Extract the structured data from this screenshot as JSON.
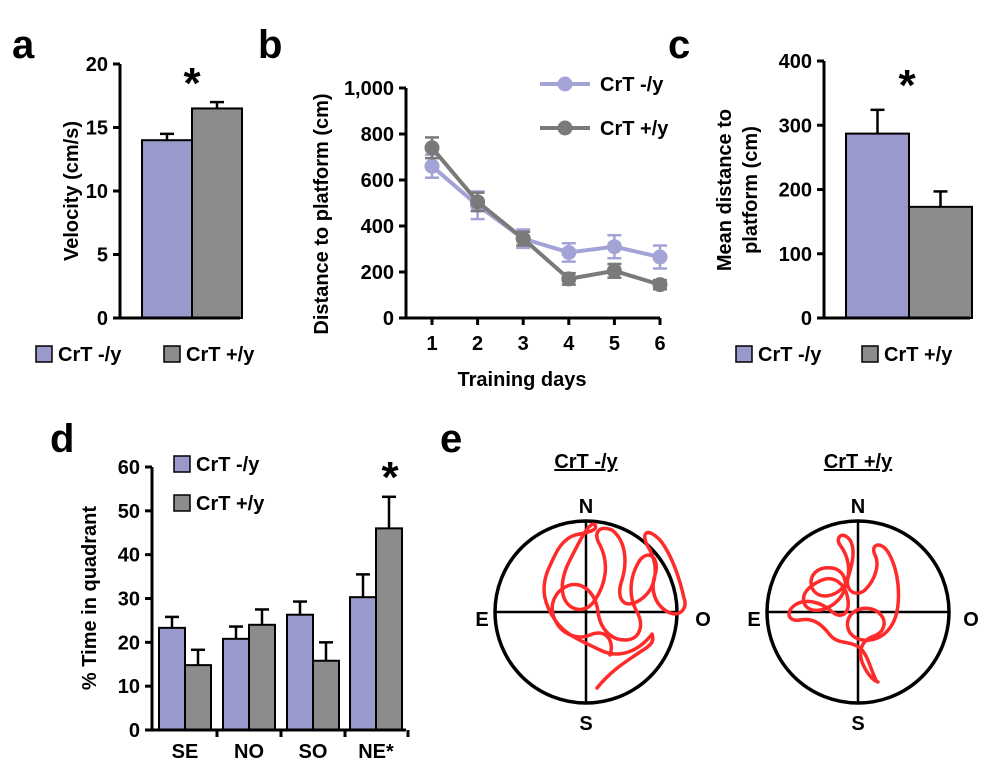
{
  "colors": {
    "ko": "#9999cc",
    "wt": "#8c8c8c",
    "ko_line": "#a3a3d6",
    "wt_line": "#7a7a7a",
    "track": "#ff2a2a",
    "axis": "#000000"
  },
  "legend_labels": {
    "ko": "CrT -/y",
    "wt": "CrT +/y"
  },
  "chart_data": [
    {
      "panel": "a",
      "type": "bar",
      "ylabel": "Velocity (cm/s)",
      "categories": [
        "CrT -/y",
        "CrT +/y"
      ],
      "values": [
        14.0,
        16.5
      ],
      "errors": [
        0.5,
        0.5
      ],
      "ylim": [
        0,
        20
      ],
      "yticks": [
        "0",
        "5",
        "10",
        "15",
        "20"
      ],
      "annotation": "*"
    },
    {
      "panel": "b",
      "type": "line",
      "xlabel": "Training days",
      "ylabel": "Distance to platform (cm)",
      "x": [
        "1",
        "2",
        "3",
        "4",
        "5",
        "6"
      ],
      "ylim": [
        0,
        1000
      ],
      "yticks": [
        "0",
        "200",
        "400",
        "600",
        "800",
        "1,000"
      ],
      "series": [
        {
          "name": "CrT -/y",
          "values": [
            660,
            490,
            345,
            285,
            310,
            265
          ],
          "errors": [
            50,
            60,
            40,
            40,
            50,
            50
          ]
        },
        {
          "name": "CrT +/y",
          "values": [
            740,
            505,
            345,
            170,
            205,
            145
          ],
          "errors": [
            45,
            40,
            30,
            25,
            30,
            20
          ]
        }
      ]
    },
    {
      "panel": "c",
      "type": "bar",
      "ylabel": "Mean distance to platform (cm)",
      "ylabel_lines": [
        "Mean distance to",
        "platform (cm)"
      ],
      "categories": [
        "CrT -/y",
        "CrT +/y"
      ],
      "values": [
        287,
        173
      ],
      "errors": [
        37,
        24
      ],
      "ylim": [
        0,
        400
      ],
      "yticks": [
        "0",
        "100",
        "200",
        "300",
        "400"
      ],
      "annotation": "*"
    },
    {
      "panel": "d",
      "type": "bar",
      "ylabel": "% Time in quadrant",
      "categories": [
        "SE",
        "NO",
        "SO",
        "NE*"
      ],
      "ylim": [
        0,
        60
      ],
      "yticks": [
        "0",
        "10",
        "20",
        "30",
        "40",
        "50",
        "60"
      ],
      "series": [
        {
          "name": "CrT -/y",
          "values": [
            23.3,
            20.8,
            26.3,
            30.3
          ],
          "errors": [
            2.5,
            2.8,
            3.0,
            5.2
          ]
        },
        {
          "name": "CrT +/y",
          "values": [
            14.8,
            24.0,
            15.8,
            46.0
          ],
          "errors": [
            3.5,
            3.5,
            4.2,
            7.2
          ]
        }
      ],
      "annotation": "*"
    }
  ],
  "panel_e": {
    "titles": [
      "CrT -/y",
      "CrT +/y"
    ],
    "compass": {
      "n": "N",
      "s": "S",
      "e": "E",
      "o": "O"
    }
  }
}
